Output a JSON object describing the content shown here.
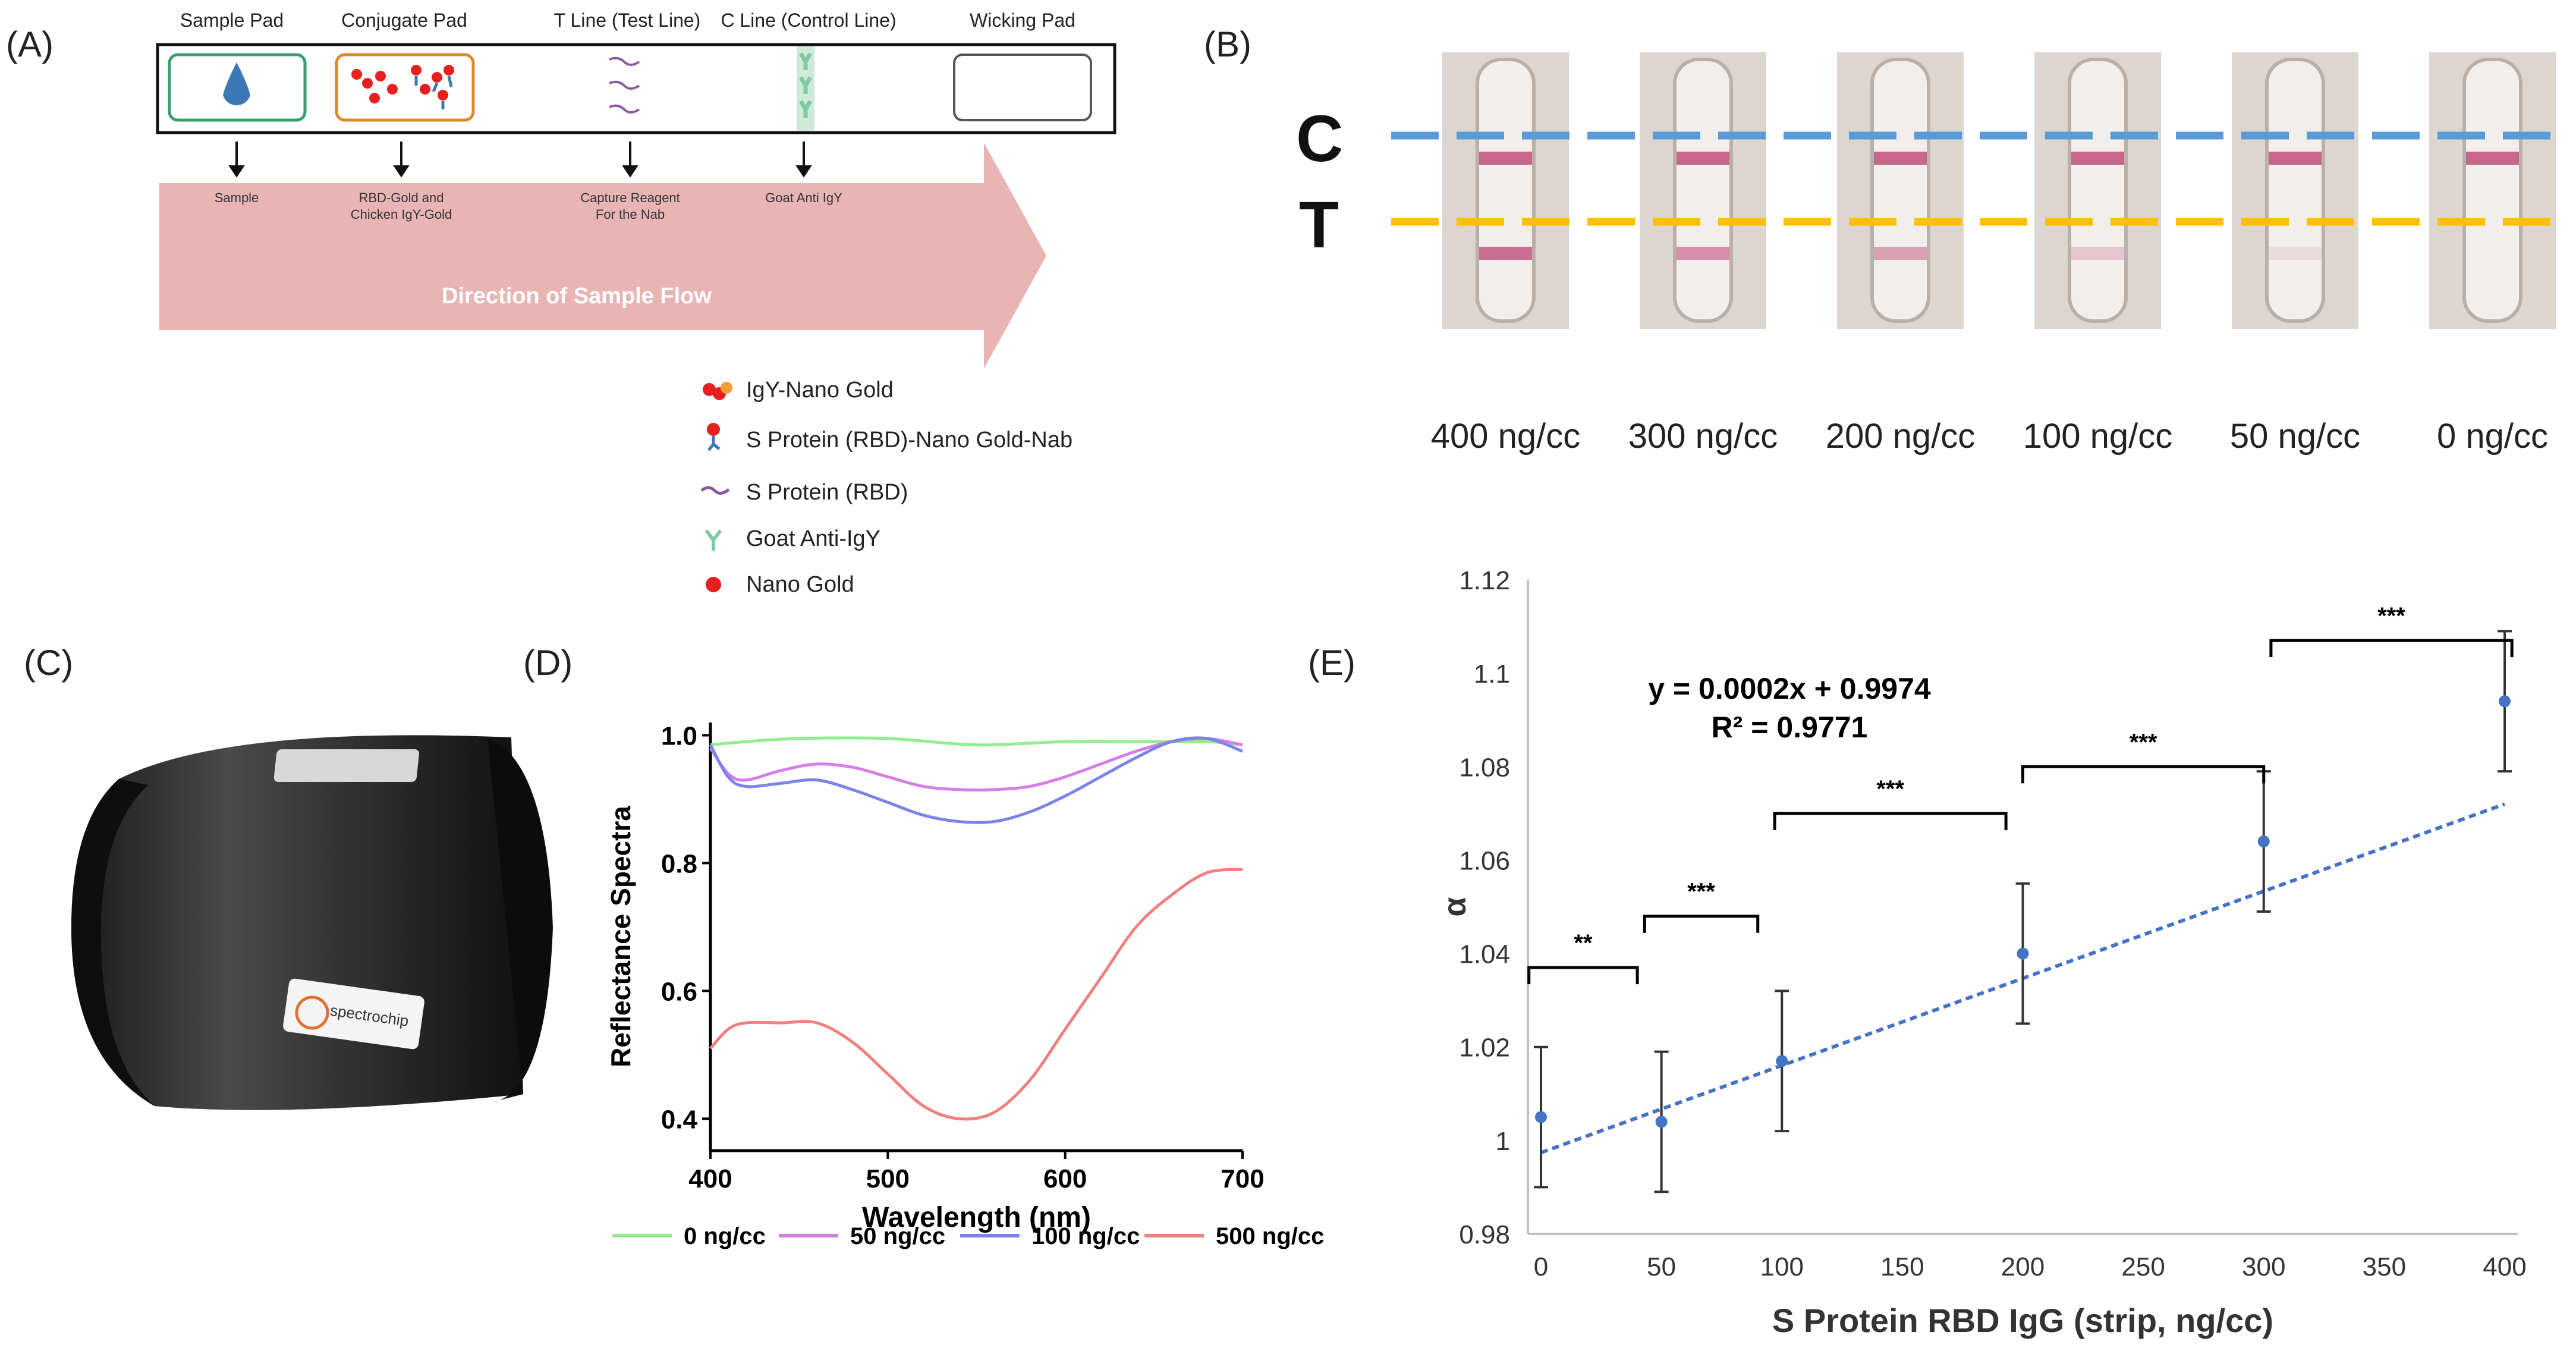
{
  "panels": {
    "a": "(A)",
    "b": "(B)",
    "c": "(C)",
    "d": "(D)",
    "e": "(E)"
  },
  "schematic": {
    "pad_headers": [
      "Sample Pad",
      "Conjugate Pad",
      "T Line (Test Line)",
      "C Line (Control Line)",
      "Wicking Pad"
    ],
    "arrow_labels": [
      "Sample",
      "RBD-Gold and\nChicken IgY-Gold",
      "Capture Reagent\nFor the Nab",
      "Goat Anti IgY"
    ],
    "flow_label": "Direction of Sample Flow",
    "legend": [
      {
        "label": "IgY-Nano Gold",
        "icon": "igy-nanogold-icon"
      },
      {
        "label": "S Protein (RBD)-Nano Gold-Nab",
        "icon": "rbd-nanogold-nab-icon"
      },
      {
        "label": "S Protein (RBD)",
        "icon": "s-protein-icon"
      },
      {
        "label": "Goat Anti-IgY",
        "icon": "goat-anti-igy-icon"
      },
      {
        "label": "Nano Gold",
        "icon": "nano-gold-icon"
      }
    ],
    "colors": {
      "flow": "#e8b4b4",
      "sample": "#3a9e6e",
      "conjugate": "#d98a2b",
      "drop": "#3c78b5"
    }
  },
  "strips": {
    "c_label": "C",
    "t_label": "T",
    "concentrations": [
      "400 ng/cc",
      "300 ng/cc",
      "200 ng/cc",
      "100 ng/cc",
      "50 ng/cc",
      "0 ng/cc"
    ],
    "t_line_intensity": [
      0.8,
      0.6,
      0.5,
      0.25,
      0.12,
      0.0
    ],
    "colors": {
      "c_line": "#5b9bd5",
      "t_line": "#ffc000"
    }
  },
  "device": {
    "brand": "spectrochip"
  },
  "chart_data": [
    {
      "id": "D",
      "type": "line",
      "xlabel": "Wavelength (nm)",
      "ylabel": "Reflectance Spectra",
      "xlim": [
        400,
        700
      ],
      "ylim": [
        0.35,
        1.02
      ],
      "xticks": [
        400,
        500,
        600,
        700
      ],
      "yticks": [
        0.4,
        0.6,
        0.8,
        1.0
      ],
      "ytick_labels": [
        "0.4",
        "0.6",
        "0.8",
        "1.0"
      ],
      "legend_position": "bottom",
      "series": [
        {
          "name": "0 ng/cc",
          "color": "#90ee90",
          "x": [
            400,
            420,
            450,
            500,
            550,
            600,
            650,
            680,
            700
          ],
          "y": [
            0.985,
            0.99,
            0.995,
            0.995,
            0.985,
            0.99,
            0.99,
            0.99,
            0.985
          ]
        },
        {
          "name": "50 ng/cc",
          "color": "#d67ee8",
          "x": [
            400,
            410,
            420,
            440,
            460,
            480,
            500,
            520,
            540,
            560,
            580,
            600,
            620,
            640,
            660,
            680,
            700
          ],
          "y": [
            0.98,
            0.94,
            0.93,
            0.945,
            0.955,
            0.95,
            0.935,
            0.92,
            0.915,
            0.915,
            0.92,
            0.935,
            0.955,
            0.975,
            0.99,
            0.995,
            0.985
          ]
        },
        {
          "name": "100 ng/cc",
          "color": "#7b83eb",
          "x": [
            400,
            410,
            420,
            440,
            460,
            480,
            500,
            520,
            540,
            560,
            580,
            600,
            620,
            640,
            660,
            680,
            700
          ],
          "y": [
            0.985,
            0.935,
            0.92,
            0.925,
            0.93,
            0.915,
            0.895,
            0.875,
            0.865,
            0.865,
            0.88,
            0.905,
            0.935,
            0.965,
            0.99,
            0.995,
            0.975
          ]
        },
        {
          "name": "500 ng/cc",
          "color": "#f08080",
          "x": [
            400,
            410,
            420,
            440,
            460,
            480,
            500,
            520,
            540,
            560,
            580,
            600,
            620,
            640,
            660,
            680,
            700
          ],
          "y": [
            0.51,
            0.54,
            0.55,
            0.55,
            0.55,
            0.52,
            0.47,
            0.42,
            0.4,
            0.41,
            0.46,
            0.54,
            0.62,
            0.7,
            0.75,
            0.785,
            0.79
          ]
        }
      ]
    },
    {
      "id": "E",
      "type": "scatter",
      "xlabel": "S Protein RBD IgG (strip, ng/cc)",
      "ylabel": "α",
      "xlim": [
        0,
        400
      ],
      "ylim": [
        0.98,
        1.12
      ],
      "xticks": [
        0,
        50,
        100,
        150,
        200,
        250,
        300,
        350,
        400
      ],
      "yticks": [
        0.98,
        1.0,
        1.02,
        1.04,
        1.06,
        1.08,
        1.1,
        1.12
      ],
      "ytick_labels": [
        "0.98",
        "1",
        "1.02",
        "1.04",
        "1.06",
        "1.08",
        "1.1",
        "1.12"
      ],
      "equation": "y = 0.0002x + 0.9974",
      "r_squared": "R² = 0.9771",
      "trend": {
        "slope": 0.0002,
        "intercept": 0.9974
      },
      "points": [
        {
          "x": 0,
          "y": 1.005,
          "err": 0.015
        },
        {
          "x": 50,
          "y": 1.004,
          "err": 0.015
        },
        {
          "x": 100,
          "y": 1.017,
          "err": 0.015
        },
        {
          "x": 200,
          "y": 1.04,
          "err": 0.015
        },
        {
          "x": 300,
          "y": 1.064,
          "err": 0.015
        },
        {
          "x": 400,
          "y": 1.094,
          "err": 0.015
        }
      ],
      "significance": [
        {
          "label": "**",
          "x0": -5,
          "x1": 40,
          "y": 1.037
        },
        {
          "label": "***",
          "x0": 43,
          "x1": 90,
          "y": 1.048
        },
        {
          "label": "***",
          "x0": 97,
          "x1": 193,
          "y": 1.07
        },
        {
          "label": "***",
          "x0": 200,
          "x1": 300,
          "y": 1.08
        },
        {
          "label": "***",
          "x0": 303,
          "x1": 403,
          "y": 1.107
        }
      ],
      "colors": {
        "point": "#4472c4",
        "trend": "#4472c4",
        "bracket": "#000000"
      }
    }
  ]
}
